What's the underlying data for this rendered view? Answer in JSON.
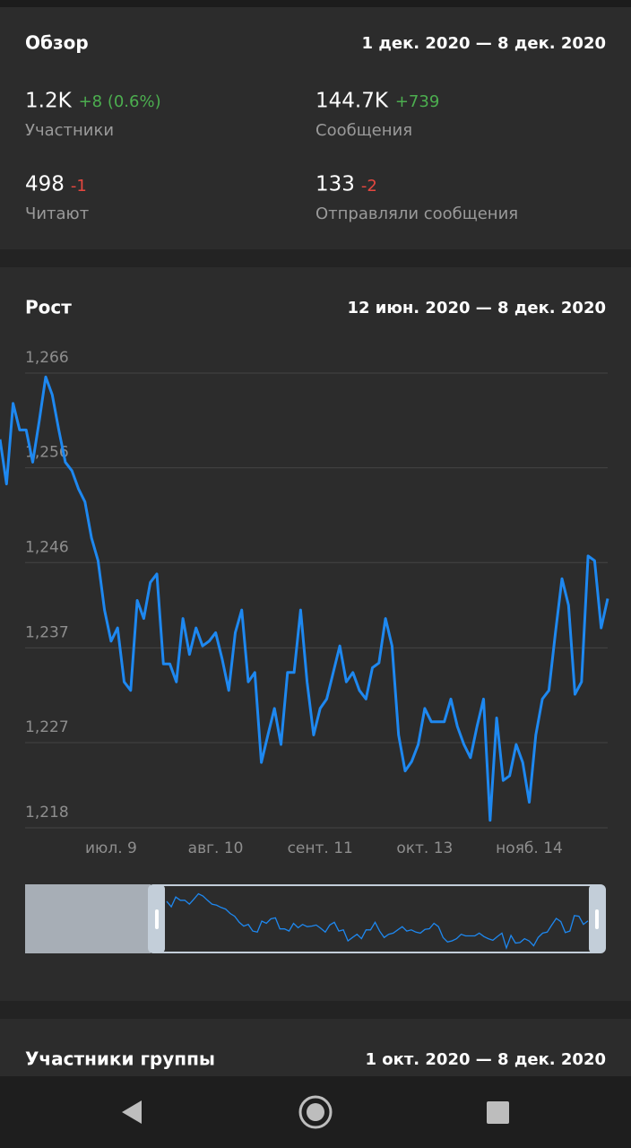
{
  "overview": {
    "title": "Обзор",
    "period": "1 дек. 2020 — 8 дек. 2020",
    "stats": [
      {
        "value": "1.2K",
        "change": "+8 (0.6%)",
        "label": "Участники"
      },
      {
        "value": "144.7K",
        "change": "+739",
        "label": "Сообщения"
      },
      {
        "value": "498",
        "change": "-1",
        "label": "Читают"
      },
      {
        "value": "133",
        "change": "-2",
        "label": "Отправляли сообщения"
      }
    ]
  },
  "chart_data": {
    "type": "line",
    "title": "Рост",
    "subtitle": "12 июн. 2020 — 8 дек. 2020",
    "color": "#1e88f0",
    "categories": [
      null,
      null,
      null,
      null,
      null,
      null,
      null,
      null,
      null,
      null,
      null,
      null,
      null,
      null,
      null,
      null,
      null,
      "июл. 9",
      null,
      null,
      null,
      null,
      null,
      null,
      null,
      null,
      null,
      null,
      null,
      null,
      null,
      null,
      null,
      "авг. 10",
      null,
      null,
      null,
      null,
      null,
      null,
      null,
      null,
      null,
      null,
      null,
      null,
      null,
      null,
      null,
      "сент. 11",
      null,
      null,
      null,
      null,
      null,
      null,
      null,
      null,
      null,
      null,
      null,
      null,
      null,
      null,
      null,
      "окт. 13",
      null,
      null,
      null,
      null,
      null,
      null,
      null,
      null,
      null,
      null,
      null,
      null,
      null,
      null,
      null,
      "нояб. 14",
      null,
      null,
      null,
      null,
      null,
      null,
      null,
      null,
      null,
      null,
      null,
      null
    ],
    "values": [
      1259,
      1254.3,
      1262.8,
      1260,
      1260,
      1256.6,
      1260.9,
      1265.6,
      1263.7,
      1260,
      1256.6,
      1255.7,
      1253.8,
      1252.4,
      1248.6,
      1246.2,
      1241,
      1237.7,
      1239.1,
      1233.4,
      1232.5,
      1242,
      1240.1,
      1243.9,
      1244.8,
      1235.3,
      1235.3,
      1233.4,
      1240.1,
      1236.3,
      1239.1,
      1237.2,
      1237.7,
      1238.6,
      1235.8,
      1232.5,
      1238.6,
      1241,
      1233.4,
      1234.4,
      1224.9,
      1227.8,
      1230.6,
      1226.8,
      1234.4,
      1234.4,
      1241,
      1233.4,
      1227.8,
      1230.6,
      1231.6,
      1234.4,
      1237.2,
      1233.4,
      1234.4,
      1232.5,
      1231.6,
      1234.9,
      1235.4,
      1240.1,
      1237.2,
      1227.8,
      1224,
      1225,
      1226.8,
      1230.6,
      1229.2,
      1229.2,
      1229.2,
      1231.6,
      1228.7,
      1226.8,
      1225.4,
      1228.7,
      1231.6,
      1218.8,
      1229.6,
      1223,
      1223.5,
      1226.8,
      1224.9,
      1220.7,
      1227.8,
      1231.6,
      1232.5,
      1238.6,
      1244.3,
      1241.5,
      1232.1,
      1233.4,
      1246.7,
      1246.2,
      1239.1,
      1242.2
    ],
    "ylim": [
      1218,
      1266
    ],
    "yticks": [
      {
        "value": 1218,
        "label": "1,218"
      },
      {
        "value": 1227,
        "label": "1,227"
      },
      {
        "value": 1237,
        "label": "1,237"
      },
      {
        "value": 1246,
        "label": "1,246"
      },
      {
        "value": 1256,
        "label": "1,256"
      },
      {
        "value": 1266,
        "label": "1,266"
      }
    ],
    "grid": true
  },
  "members": {
    "title": "Участники группы",
    "period": "1 окт. 2020 — 8 дек. 2020"
  }
}
